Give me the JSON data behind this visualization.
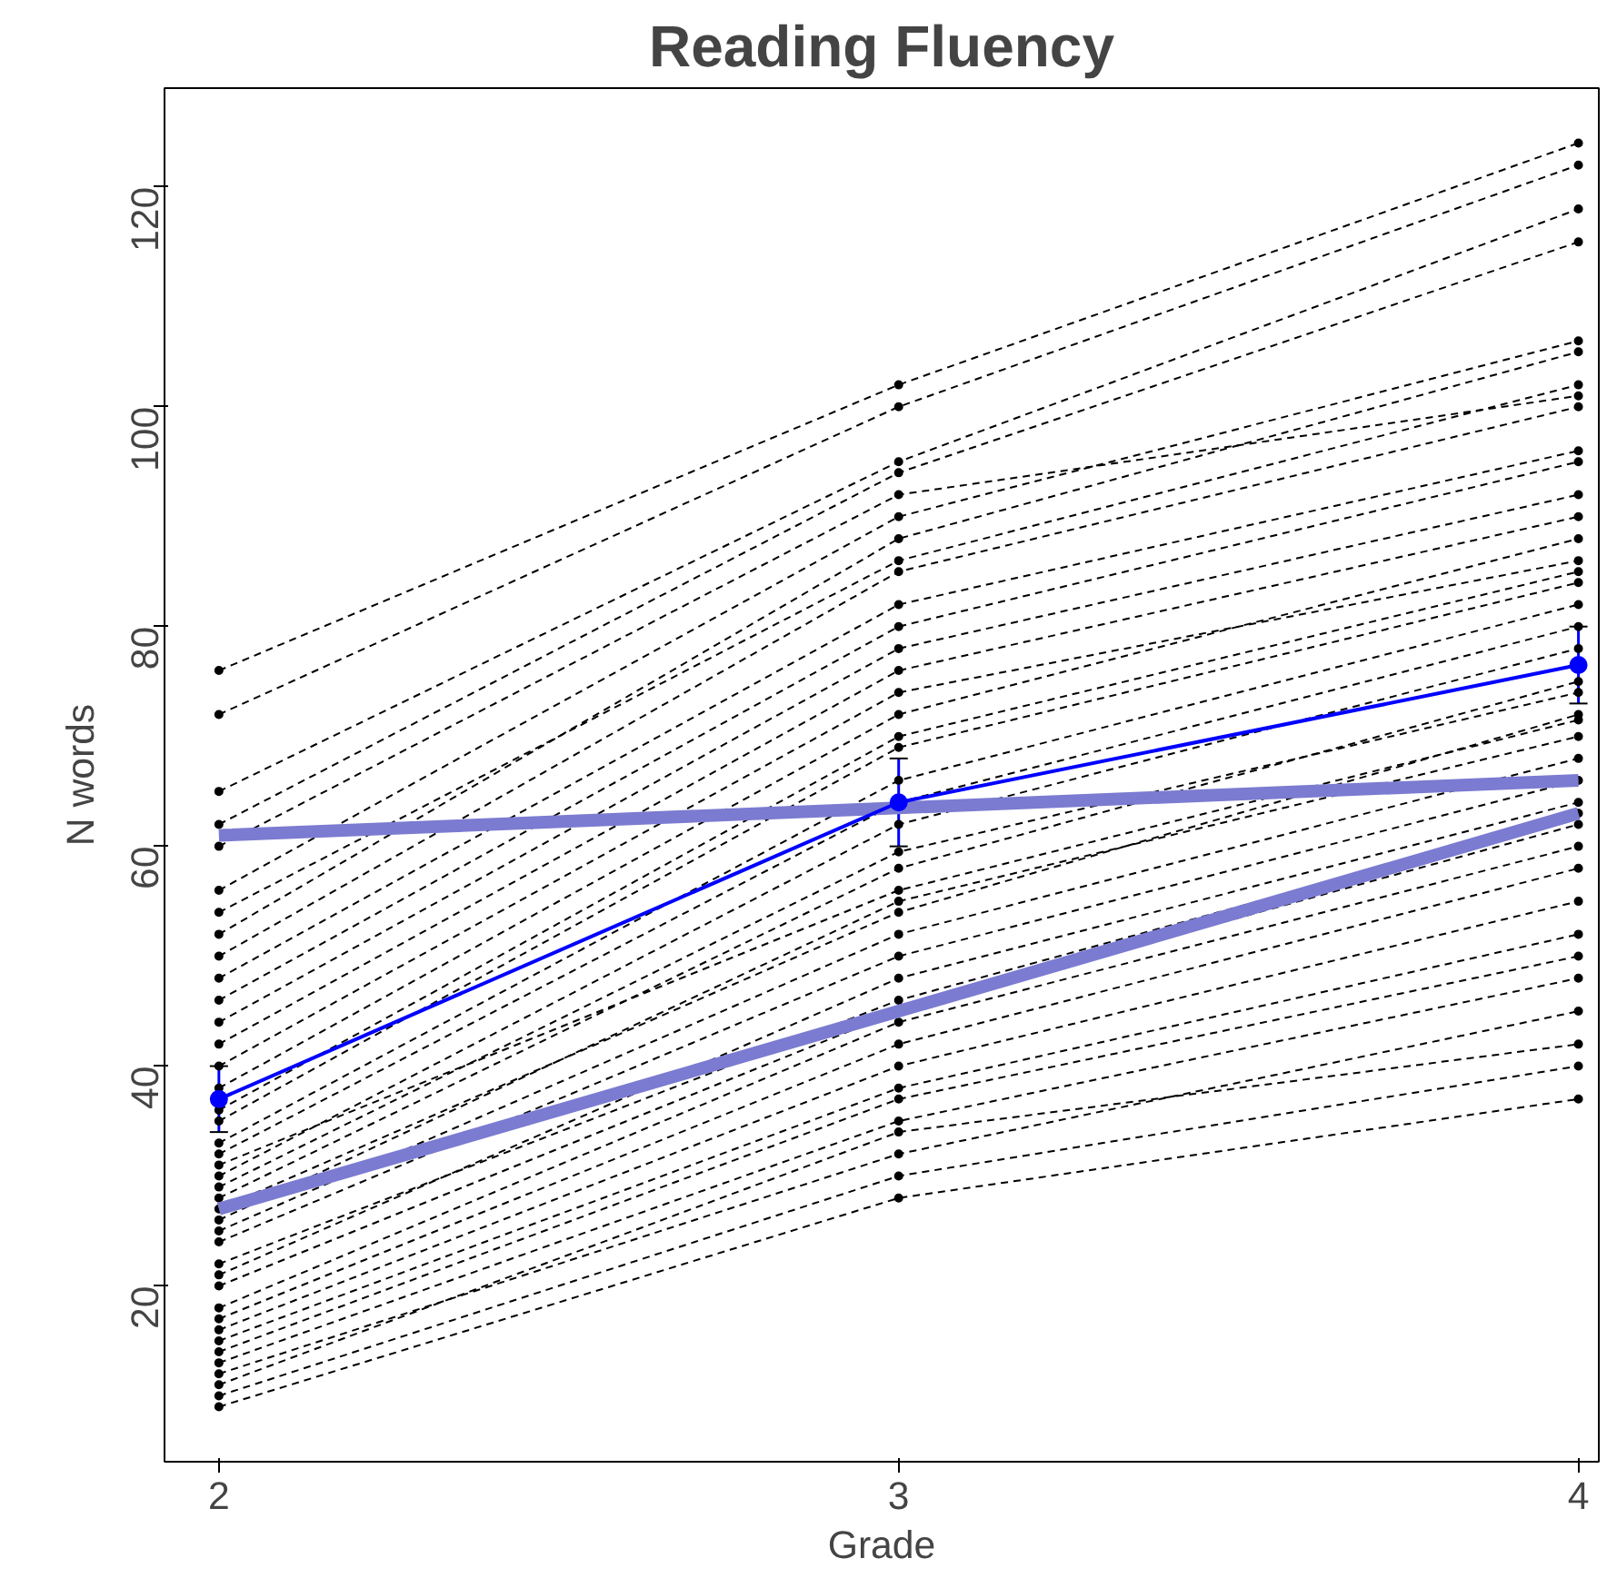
{
  "chart_data": {
    "type": "line",
    "title": "Reading Fluency",
    "xlabel": "Grade",
    "ylabel": "N words",
    "x": [
      2,
      3,
      4
    ],
    "xlim": [
      1.92,
      4.03
    ],
    "ylim": [
      4,
      129
    ],
    "xticks": [
      2,
      3,
      4
    ],
    "yticks": [
      20,
      40,
      60,
      80,
      100,
      120
    ],
    "grid": false,
    "series": [
      {
        "color": "#000000",
        "line_style": "dashed",
        "marker": "circle",
        "values": [
          9,
          28,
          37
        ]
      },
      {
        "color": "#000000",
        "line_style": "dashed",
        "marker": "circle",
        "values": [
          10,
          30,
          40
        ]
      },
      {
        "color": "#000000",
        "line_style": "dashed",
        "marker": "circle",
        "values": [
          11,
          34,
          42
        ]
      },
      {
        "color": "#000000",
        "line_style": "dashed",
        "marker": "circle",
        "values": [
          12,
          32,
          45
        ]
      },
      {
        "color": "#000000",
        "line_style": "dashed",
        "marker": "circle",
        "values": [
          13,
          35,
          48
        ]
      },
      {
        "color": "#000000",
        "line_style": "dashed",
        "marker": "circle",
        "values": [
          14,
          37,
          50
        ]
      },
      {
        "color": "#000000",
        "line_style": "dashed",
        "marker": "circle",
        "values": [
          15,
          38,
          52
        ]
      },
      {
        "color": "#000000",
        "line_style": "dashed",
        "marker": "circle",
        "values": [
          16,
          40,
          55
        ]
      },
      {
        "color": "#000000",
        "line_style": "dashed",
        "marker": "circle",
        "values": [
          17,
          42,
          58
        ]
      },
      {
        "color": "#000000",
        "line_style": "dashed",
        "marker": "circle",
        "values": [
          18,
          44,
          60
        ]
      },
      {
        "color": "#000000",
        "line_style": "dashed",
        "marker": "circle",
        "values": [
          20,
          45,
          62
        ]
      },
      {
        "color": "#000000",
        "line_style": "dashed",
        "marker": "circle",
        "values": [
          21,
          48,
          64
        ]
      },
      {
        "color": "#000000",
        "line_style": "dashed",
        "marker": "circle",
        "values": [
          22,
          46,
          63
        ]
      },
      {
        "color": "#000000",
        "line_style": "dashed",
        "marker": "circle",
        "values": [
          24,
          50,
          66
        ]
      },
      {
        "color": "#000000",
        "line_style": "dashed",
        "marker": "circle",
        "values": [
          25,
          52,
          68
        ]
      },
      {
        "color": "#000000",
        "line_style": "dashed",
        "marker": "circle",
        "values": [
          26,
          55,
          70
        ]
      },
      {
        "color": "#000000",
        "line_style": "dashed",
        "marker": "circle",
        "values": [
          27,
          54,
          72
        ]
      },
      {
        "color": "#000000",
        "line_style": "dashed",
        "marker": "circle",
        "values": [
          28,
          58,
          75
        ]
      },
      {
        "color": "#000000",
        "line_style": "dashed",
        "marker": "circle",
        "values": [
          29,
          59.5,
          74
        ]
      },
      {
        "color": "#000000",
        "line_style": "dashed",
        "marker": "circle",
        "values": [
          30,
          62,
          78
        ]
      },
      {
        "color": "#000000",
        "line_style": "dashed",
        "marker": "circle",
        "values": [
          31,
          56,
          71.5
        ]
      },
      {
        "color": "#000000",
        "line_style": "dashed",
        "marker": "circle",
        "values": [
          32,
          64,
          80
        ]
      },
      {
        "color": "#000000",
        "line_style": "dashed",
        "marker": "circle",
        "values": [
          33,
          66,
          82
        ]
      },
      {
        "color": "#000000",
        "line_style": "dashed",
        "marker": "circle",
        "values": [
          35,
          69,
          84
        ]
      },
      {
        "color": "#000000",
        "line_style": "dashed",
        "marker": "circle",
        "values": [
          36,
          70,
          85
        ]
      },
      {
        "color": "#000000",
        "line_style": "dashed",
        "marker": "circle",
        "values": [
          38,
          72,
          88
        ]
      },
      {
        "color": "#000000",
        "line_style": "dashed",
        "marker": "circle",
        "values": [
          40,
          74,
          86
        ]
      },
      {
        "color": "#000000",
        "line_style": "dashed",
        "marker": "circle",
        "values": [
          42,
          76,
          90
        ]
      },
      {
        "color": "#000000",
        "line_style": "dashed",
        "marker": "circle",
        "values": [
          44,
          78,
          92
        ]
      },
      {
        "color": "#000000",
        "line_style": "dashed",
        "marker": "circle",
        "values": [
          46,
          80,
          95
        ]
      },
      {
        "color": "#000000",
        "line_style": "dashed",
        "marker": "circle",
        "values": [
          48,
          82,
          96
        ]
      },
      {
        "color": "#000000",
        "line_style": "dashed",
        "marker": "circle",
        "values": [
          50,
          85,
          100
        ]
      },
      {
        "color": "#000000",
        "line_style": "dashed",
        "marker": "circle",
        "values": [
          52,
          88,
          105
        ]
      },
      {
        "color": "#000000",
        "line_style": "dashed",
        "marker": "circle",
        "values": [
          54,
          86,
          102
        ]
      },
      {
        "color": "#000000",
        "line_style": "dashed",
        "marker": "circle",
        "values": [
          56,
          90,
          106
        ]
      },
      {
        "color": "#000000",
        "line_style": "dashed",
        "marker": "circle",
        "values": [
          60,
          92,
          101
        ]
      },
      {
        "color": "#000000",
        "line_style": "dashed",
        "marker": "circle",
        "values": [
          62,
          94,
          115
        ]
      },
      {
        "color": "#000000",
        "line_style": "dashed",
        "marker": "circle",
        "values": [
          65,
          95,
          118
        ]
      },
      {
        "color": "#000000",
        "line_style": "dashed",
        "marker": "circle",
        "values": [
          72,
          100,
          122
        ]
      },
      {
        "color": "#000000",
        "line_style": "dashed",
        "marker": "circle",
        "values": [
          76,
          102,
          124
        ]
      },
      {
        "color": "#7b7bd1",
        "line_style": "solid",
        "marker": "none",
        "values": [
          61,
          63.5,
          66
        ]
      },
      {
        "color": "#7b7bd1",
        "line_style": "solid",
        "marker": "none",
        "values": [
          27,
          45,
          63
        ]
      },
      {
        "color": "#0000ff",
        "line_style": "solid",
        "marker": "circle",
        "values": [
          37,
          64,
          76.5
        ],
        "errors": [
          [
            34,
            40
          ],
          [
            60,
            68
          ],
          [
            73,
            80
          ]
        ]
      }
    ]
  }
}
